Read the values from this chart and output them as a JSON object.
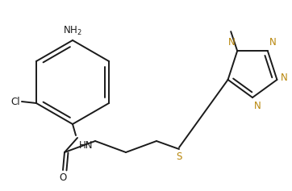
{
  "bg_color": "#ffffff",
  "line_color": "#1a1a1a",
  "n_color": "#b8860b",
  "s_color": "#b8860b",
  "lw": 1.4,
  "figsize": [
    3.62,
    2.37
  ],
  "dpi": 100,
  "xlim": [
    0,
    362
  ],
  "ylim": [
    0,
    237
  ]
}
